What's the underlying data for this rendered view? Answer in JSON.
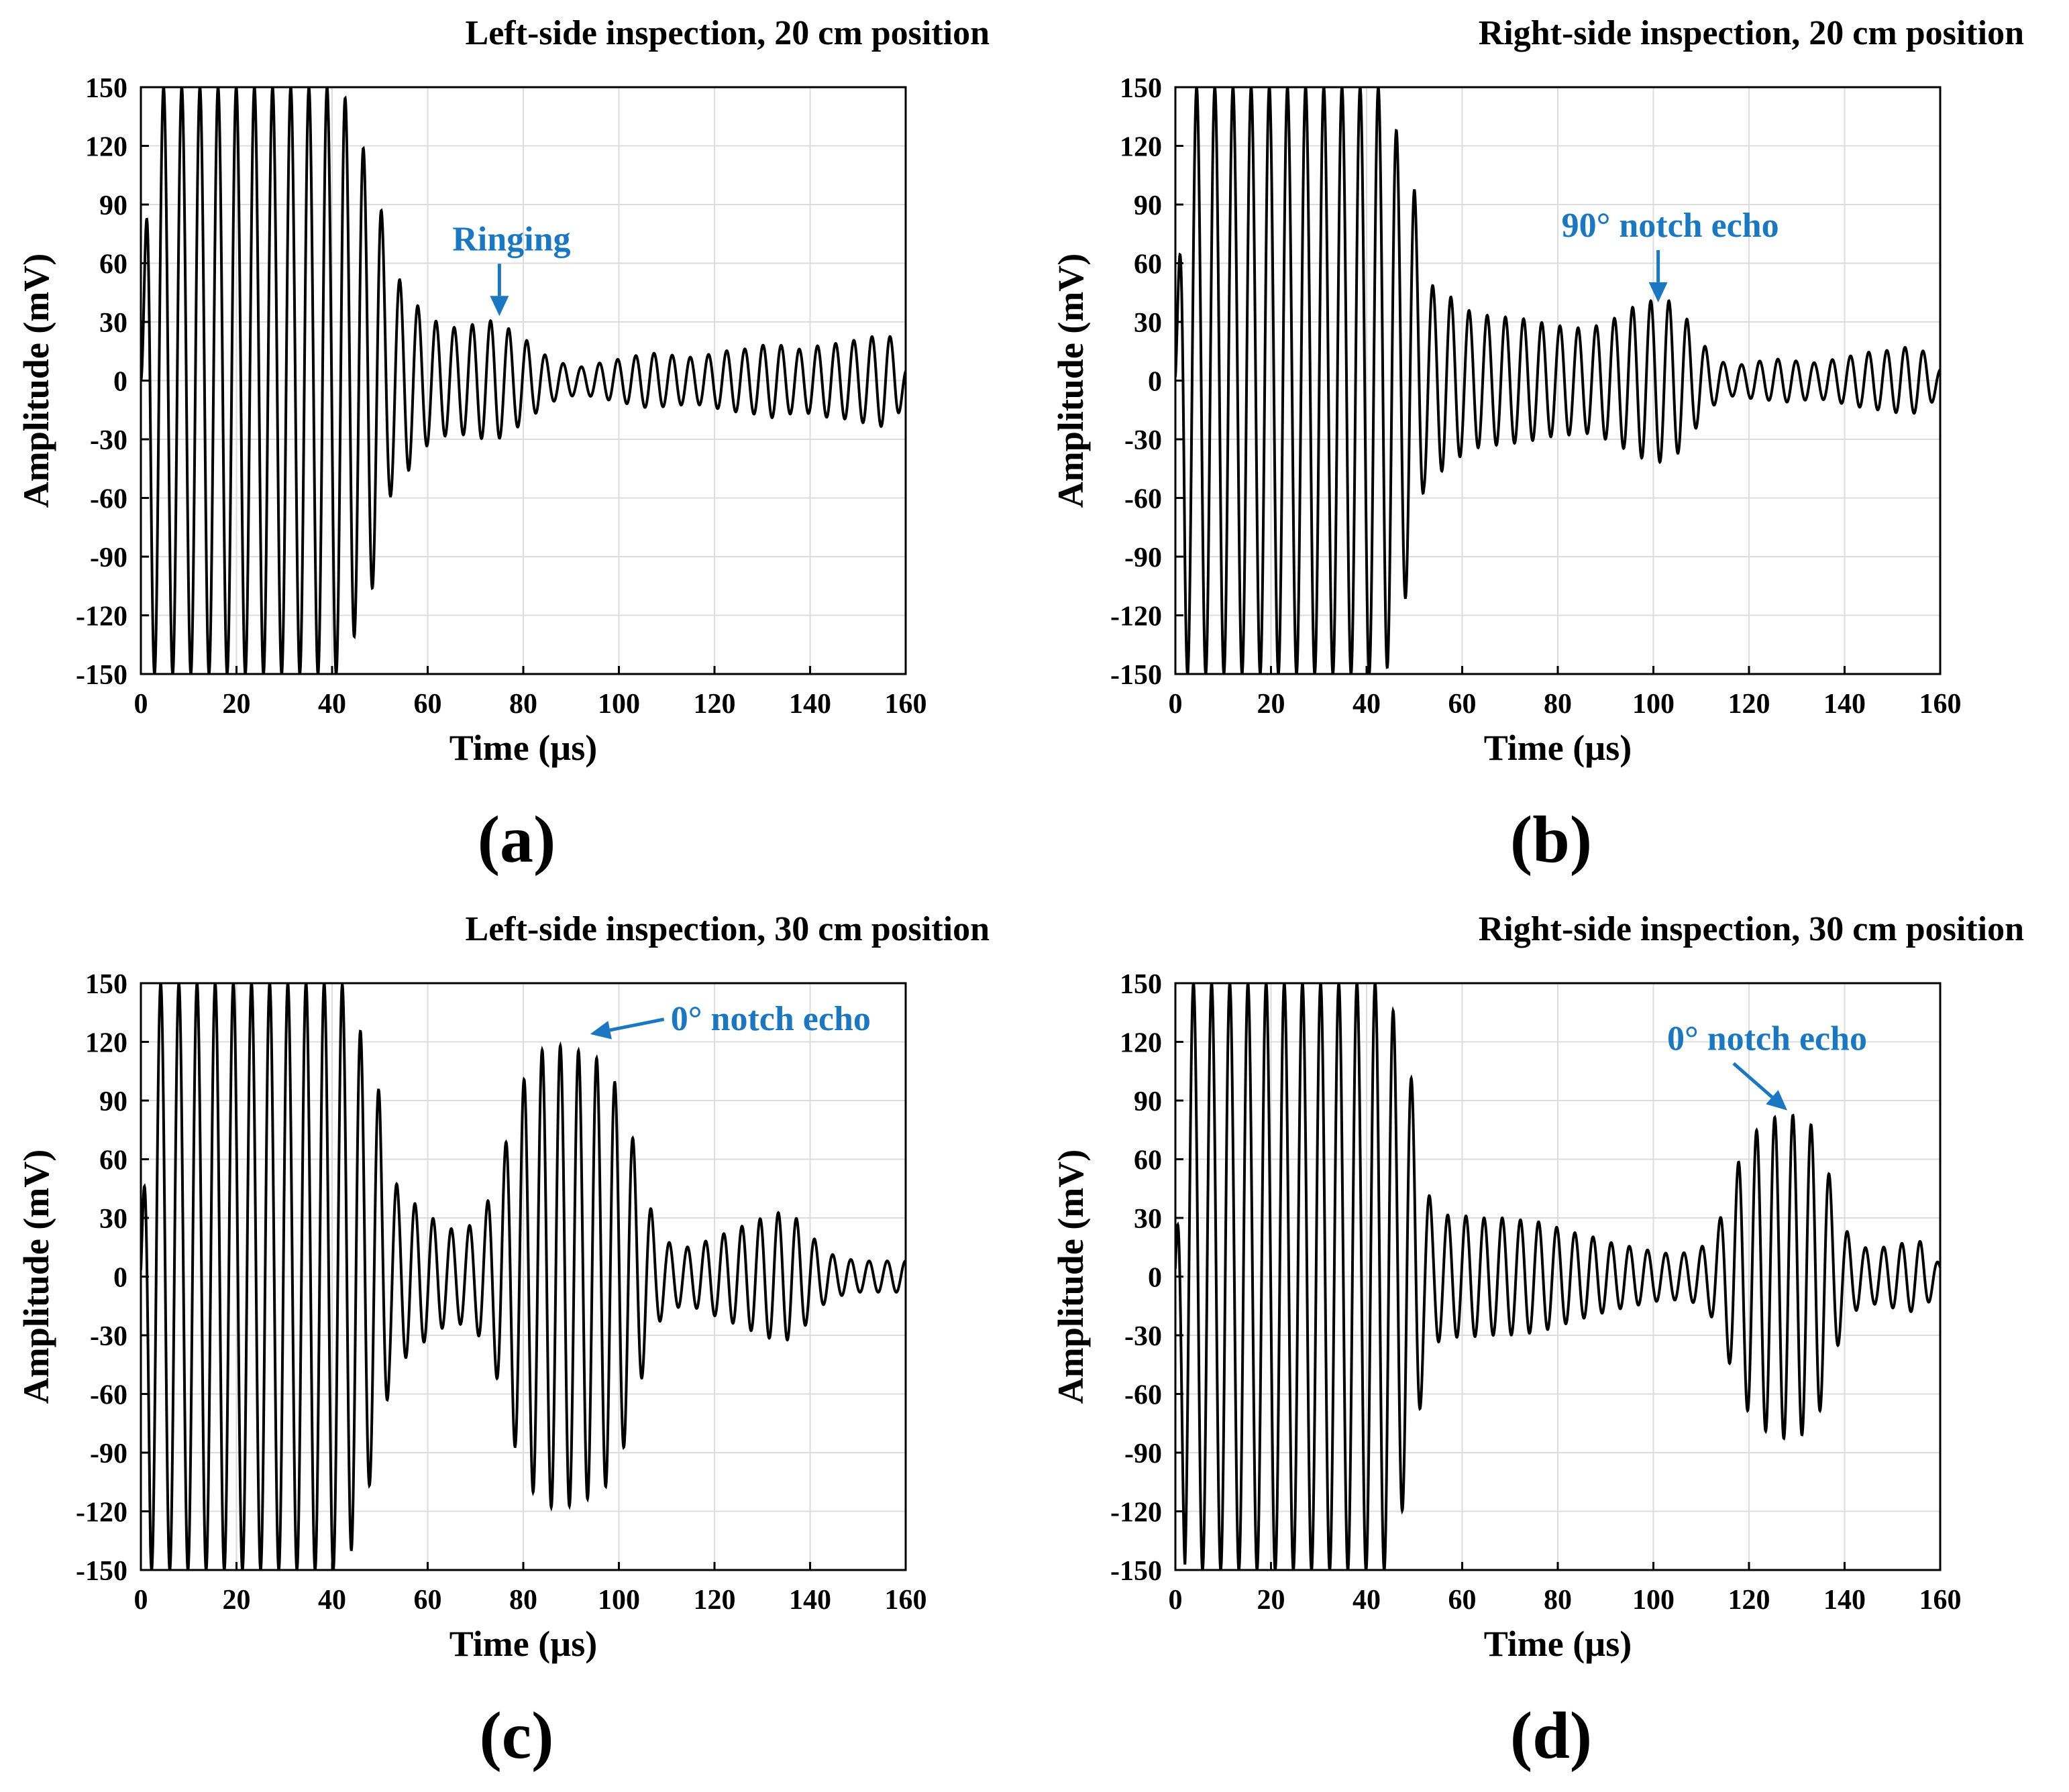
{
  "style": {
    "annotation_color": "#1a78c2",
    "trace_color": "#000000",
    "grid_color": "#dcdcdc"
  },
  "chart_data": [
    {
      "id": "a",
      "type": "line",
      "title": "Left-side inspection, 20 cm position",
      "panel_label": "(a)",
      "xlabel": "Time (µs)",
      "ylabel": "Amplitude (mV)",
      "xlim": [
        0,
        160
      ],
      "ylim": [
        -150,
        150
      ],
      "xticks": [
        0,
        20,
        40,
        60,
        80,
        100,
        120,
        140,
        160
      ],
      "yticks": [
        150,
        120,
        90,
        60,
        30,
        0,
        -30,
        -60,
        -90,
        -120,
        -150
      ],
      "grid": true,
      "annotation": {
        "text": "Ringing",
        "target": [
          75,
          33
        ],
        "arrow": "down"
      },
      "series": [
        {
          "name": "signal",
          "x": [
            0,
            2,
            4,
            6,
            8,
            10,
            12,
            14,
            16,
            18,
            20,
            22,
            24,
            26,
            28,
            30,
            32,
            34,
            36,
            38,
            40,
            42,
            44,
            46,
            48,
            50,
            52,
            54,
            56,
            58,
            60,
            62,
            64,
            66,
            68,
            70,
            72,
            74,
            76,
            78,
            80,
            82,
            84,
            86,
            88,
            90,
            92,
            94,
            96,
            98,
            100,
            102,
            104,
            106,
            108,
            110,
            112,
            114,
            116,
            118,
            120,
            122,
            124,
            126,
            128,
            130,
            132,
            134,
            136,
            138,
            140,
            142,
            144,
            146,
            148,
            150,
            152,
            154,
            156,
            158,
            160
          ],
          "env": [
            0,
            150,
            150,
            150,
            150,
            150,
            150,
            150,
            150,
            150,
            150,
            150,
            150,
            150,
            150,
            150,
            150,
            150,
            150,
            150,
            150,
            150,
            135,
            122,
            110,
            92,
            60,
            52,
            46,
            38,
            33,
            30,
            28,
            27,
            28,
            29,
            30,
            31,
            28,
            25,
            22,
            18,
            14,
            11,
            9,
            8,
            7,
            8,
            9,
            10,
            11,
            12,
            13,
            14,
            14,
            13,
            13,
            12,
            12,
            13,
            14,
            15,
            16,
            16,
            17,
            18,
            19,
            18,
            17,
            16,
            17,
            18,
            19,
            19,
            20,
            21,
            22,
            23,
            24,
            20,
            8
          ],
          "period": 3.8,
          "phase": 0
        }
      ]
    },
    {
      "id": "b",
      "type": "line",
      "title": "Right-side inspection, 20 cm position",
      "panel_label": "(b)",
      "xlabel": "Time (µs)",
      "ylabel": "Amplitude (mV)",
      "xlim": [
        0,
        160
      ],
      "ylim": [
        -150,
        150
      ],
      "xticks": [
        0,
        20,
        40,
        60,
        80,
        100,
        120,
        140,
        160
      ],
      "yticks": [
        150,
        120,
        90,
        60,
        30,
        0,
        -30,
        -60,
        -90,
        -120,
        -150
      ],
      "grid": true,
      "annotation": {
        "text": "90° notch echo",
        "target": [
          101,
          40
        ],
        "arrow": "down"
      },
      "series": [
        {
          "name": "signal",
          "x": [
            0,
            2,
            4,
            6,
            8,
            10,
            12,
            14,
            16,
            18,
            20,
            22,
            24,
            26,
            28,
            30,
            32,
            34,
            36,
            38,
            40,
            42,
            44,
            46,
            48,
            50,
            52,
            54,
            56,
            58,
            60,
            62,
            64,
            66,
            68,
            70,
            72,
            74,
            76,
            78,
            80,
            82,
            84,
            86,
            88,
            90,
            92,
            94,
            96,
            98,
            100,
            102,
            104,
            106,
            108,
            110,
            112,
            114,
            116,
            118,
            120,
            122,
            124,
            126,
            128,
            130,
            132,
            134,
            136,
            138,
            140,
            142,
            144,
            146,
            148,
            150,
            152,
            154,
            156,
            158,
            160
          ],
          "env": [
            4,
            150,
            150,
            150,
            150,
            150,
            150,
            150,
            150,
            150,
            150,
            150,
            150,
            150,
            150,
            150,
            150,
            150,
            150,
            150,
            150,
            150,
            150,
            130,
            112,
            98,
            55,
            48,
            46,
            42,
            38,
            35,
            34,
            33,
            33,
            32,
            32,
            31,
            30,
            29,
            28,
            28,
            27,
            27,
            28,
            30,
            32,
            35,
            38,
            40,
            41,
            42,
            40,
            35,
            28,
            20,
            14,
            10,
            8,
            8,
            9,
            10,
            10,
            11,
            11,
            10,
            10,
            9,
            10,
            11,
            12,
            13,
            14,
            15,
            15,
            16,
            17,
            17,
            16,
            12,
            6
          ],
          "period": 3.8,
          "phase": 0.5
        }
      ]
    },
    {
      "id": "c",
      "type": "line",
      "title": "Left-side inspection, 30 cm position",
      "panel_label": "(c)",
      "xlabel": "Time (µs)",
      "ylabel": "Amplitude (mV)",
      "xlim": [
        0,
        160
      ],
      "ylim": [
        -150,
        150
      ],
      "xticks": [
        0,
        20,
        40,
        60,
        80,
        100,
        120,
        140,
        160
      ],
      "yticks": [
        150,
        120,
        90,
        60,
        30,
        0,
        -30,
        -60,
        -90,
        -120,
        -150
      ],
      "grid": true,
      "annotation": {
        "text": "0° notch echo",
        "target": [
          94,
          124
        ],
        "arrow": "left"
      },
      "series": [
        {
          "name": "signal",
          "x": [
            0,
            2,
            4,
            6,
            8,
            10,
            12,
            14,
            16,
            18,
            20,
            22,
            24,
            26,
            28,
            30,
            32,
            34,
            36,
            38,
            40,
            42,
            44,
            46,
            48,
            50,
            52,
            54,
            56,
            58,
            60,
            62,
            64,
            66,
            68,
            70,
            72,
            74,
            76,
            78,
            80,
            82,
            84,
            86,
            88,
            90,
            92,
            94,
            96,
            98,
            100,
            102,
            104,
            106,
            108,
            110,
            112,
            114,
            116,
            118,
            120,
            122,
            124,
            126,
            128,
            130,
            132,
            134,
            136,
            138,
            140,
            142,
            144,
            146,
            148,
            150,
            152,
            154,
            156,
            158,
            160
          ],
          "env": [
            4,
            150,
            150,
            150,
            150,
            150,
            150,
            150,
            150,
            150,
            150,
            150,
            150,
            150,
            150,
            150,
            150,
            150,
            150,
            150,
            150,
            150,
            140,
            125,
            105,
            94,
            55,
            45,
            40,
            36,
            32,
            28,
            25,
            24,
            25,
            28,
            35,
            48,
            65,
            85,
            100,
            110,
            116,
            118,
            118,
            117,
            115,
            113,
            111,
            105,
            95,
            80,
            60,
            40,
            25,
            18,
            16,
            15,
            16,
            18,
            20,
            22,
            24,
            26,
            28,
            30,
            32,
            33,
            32,
            28,
            22,
            16,
            12,
            10,
            9,
            8,
            8,
            8,
            8,
            8,
            8
          ],
          "period": 3.8,
          "phase": 1.0
        }
      ]
    },
    {
      "id": "d",
      "type": "line",
      "title": "Right-side inspection, 30 cm position",
      "panel_label": "(d)",
      "xlabel": "Time (µs)",
      "ylabel": "Amplitude (mV)",
      "xlim": [
        0,
        160
      ],
      "ylim": [
        -150,
        150
      ],
      "xticks": [
        0,
        20,
        40,
        60,
        80,
        100,
        120,
        140,
        160
      ],
      "yticks": [
        150,
        120,
        90,
        60,
        30,
        0,
        -30,
        -60,
        -90,
        -120,
        -150
      ],
      "grid": true,
      "annotation": {
        "text": "0° notch echo",
        "target": [
          128,
          85
        ],
        "arrow": "down-right"
      },
      "series": [
        {
          "name": "signal",
          "x": [
            0,
            2,
            4,
            6,
            8,
            10,
            12,
            14,
            16,
            18,
            20,
            22,
            24,
            26,
            28,
            30,
            32,
            34,
            36,
            38,
            40,
            42,
            44,
            46,
            48,
            50,
            52,
            54,
            56,
            58,
            60,
            62,
            64,
            66,
            68,
            70,
            72,
            74,
            76,
            78,
            80,
            82,
            84,
            86,
            88,
            90,
            92,
            94,
            96,
            98,
            100,
            102,
            104,
            106,
            108,
            110,
            112,
            114,
            116,
            118,
            120,
            122,
            124,
            126,
            128,
            130,
            132,
            134,
            136,
            138,
            140,
            142,
            144,
            146,
            148,
            150,
            152,
            154,
            156,
            158,
            160
          ],
          "env": [
            4,
            150,
            150,
            150,
            150,
            150,
            150,
            150,
            150,
            150,
            150,
            150,
            150,
            150,
            150,
            150,
            150,
            150,
            150,
            150,
            150,
            150,
            150,
            132,
            115,
            95,
            50,
            35,
            32,
            31,
            31,
            31,
            30,
            30,
            30,
            30,
            29,
            29,
            28,
            27,
            25,
            24,
            22,
            21,
            20,
            18,
            17,
            16,
            15,
            14,
            13,
            12,
            12,
            12,
            13,
            15,
            20,
            30,
            45,
            60,
            70,
            76,
            80,
            82,
            83,
            82,
            80,
            75,
            60,
            40,
            25,
            18,
            15,
            14,
            15,
            16,
            17,
            18,
            18,
            12,
            6
          ],
          "period": 3.8,
          "phase": 1.6
        }
      ]
    }
  ]
}
